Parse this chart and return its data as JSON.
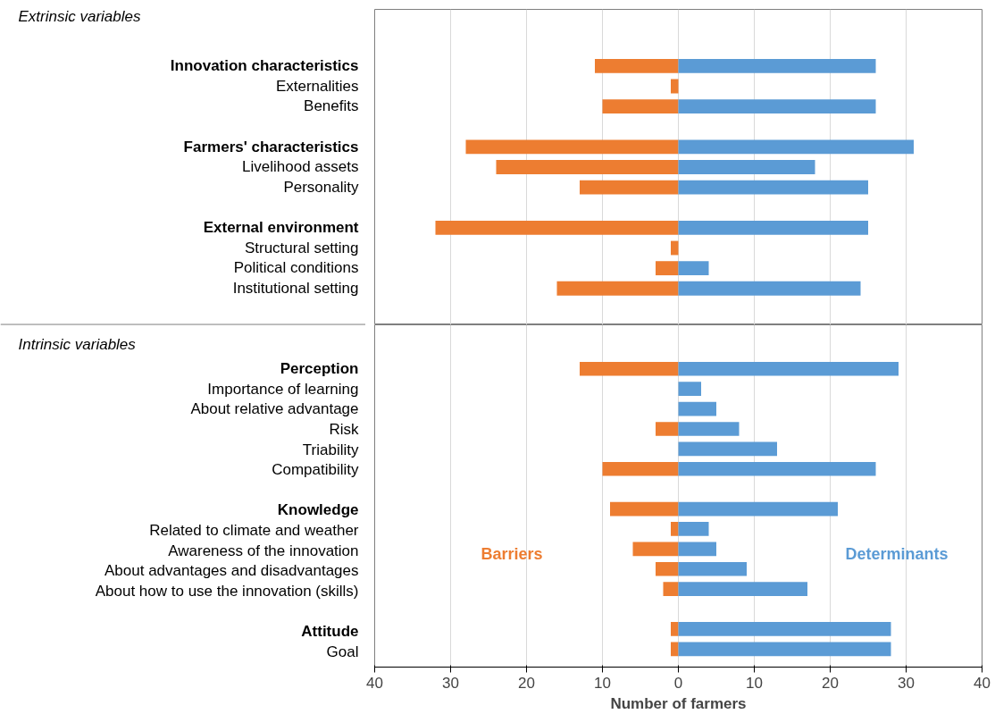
{
  "chart_data": {
    "type": "bar",
    "orientation": "horizontal",
    "stacked": true,
    "xlabel": "Number of farmers",
    "categories": [
      null,
      null,
      "Innovation characteristics",
      "Externalities",
      "Benefits",
      null,
      "Farmers' characteristics",
      "Livelihood assets",
      "Personality",
      null,
      "External environment",
      "Structural setting",
      "Political conditions",
      "Institutional setting",
      null,
      null,
      null,
      "Perception",
      "Importance of learning",
      "About relative advantage",
      "Risk",
      "Triability",
      "Compatibility",
      null,
      "Knowledge",
      "Related to climate and weather",
      "Awareness of the innovation",
      "About advantages and disadvantages",
      "About how to use the innovation (skills)",
      null,
      "Attitude",
      "Goal"
    ],
    "series": [
      {
        "name": "Barriers",
        "color": "#ed7d31",
        "values": [
          null,
          null,
          -11,
          -1,
          -10,
          null,
          -28,
          -24,
          -13,
          null,
          -32,
          -1,
          -3,
          -16,
          null,
          null,
          null,
          -13,
          0,
          0,
          -3,
          0,
          -10,
          null,
          -9,
          -1,
          -6,
          -3,
          -2,
          null,
          -1,
          -1
        ]
      },
      {
        "name": "Determinants",
        "color": "#5b9bd5",
        "values": [
          null,
          null,
          26,
          0,
          26,
          null,
          31,
          18,
          25,
          null,
          25,
          0,
          4,
          24,
          null,
          null,
          null,
          29,
          3,
          5,
          8,
          13,
          26,
          null,
          21,
          4,
          5,
          9,
          17,
          null,
          28,
          28
        ]
      }
    ],
    "xlim": [
      -40,
      40
    ],
    "xticks": [
      {
        "value": -40,
        "label": "40"
      },
      {
        "value": -30,
        "label": "30"
      },
      {
        "value": -20,
        "label": "20"
      },
      {
        "value": -10,
        "label": "10"
      },
      0,
      10,
      20,
      30,
      40
    ],
    "grid": "x",
    "annotations": [
      "Extrinsic variables",
      "Intrinsic variables"
    ]
  }
}
